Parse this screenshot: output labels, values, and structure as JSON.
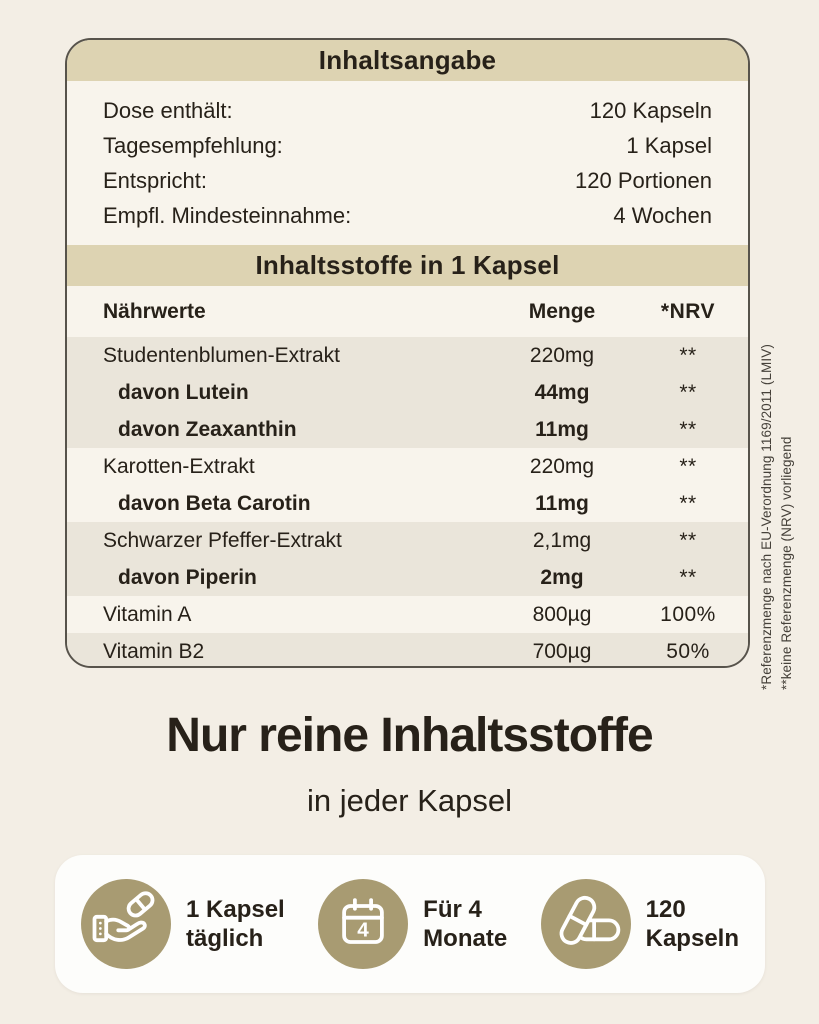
{
  "colors": {
    "page_bg": "#f3eee5",
    "card_bg": "#f8f4ec",
    "band_bg": "#ddd3b2",
    "row_shade": "#eae5da",
    "text": "#272119",
    "muted_text": "#46413a",
    "icon_circle": "#a89b72",
    "benefits_bg": "#fdfdfb",
    "card_border": "#57534b"
  },
  "panel": {
    "title": "Inhaltsangabe",
    "info_rows": [
      {
        "label": "Dose enthält:",
        "value": "120 Kapseln"
      },
      {
        "label": "Tagesempfehlung:",
        "value": "1 Kapsel"
      },
      {
        "label": "Entspricht:",
        "value": "120 Portionen"
      },
      {
        "label": "Empfl. Mindesteinnahme:",
        "value": "4 Wochen"
      }
    ],
    "subtitle": "Inhaltsstoffe in 1 Kapsel",
    "table": {
      "col_name": "Nährwerte",
      "col_amount": "Menge",
      "col_nrv": "*NRV",
      "rows": [
        {
          "name": "Studentenblumen-Extrakt",
          "amount": "220mg",
          "nrv": "**",
          "bold": false,
          "indent": false,
          "shaded": true
        },
        {
          "name": "davon Lutein",
          "amount": "44mg",
          "nrv": "**",
          "bold": true,
          "indent": true,
          "shaded": true
        },
        {
          "name": "davon Zeaxanthin",
          "amount": "11mg",
          "nrv": "**",
          "bold": true,
          "indent": true,
          "shaded": true
        },
        {
          "name": "Karotten-Extrakt",
          "amount": "220mg",
          "nrv": "**",
          "bold": false,
          "indent": false,
          "shaded": false
        },
        {
          "name": "davon Beta Carotin",
          "amount": "11mg",
          "nrv": "**",
          "bold": true,
          "indent": true,
          "shaded": false
        },
        {
          "name": "Schwarzer Pfeffer-Extrakt",
          "amount": "2,1mg",
          "nrv": "**",
          "bold": false,
          "indent": false,
          "shaded": true
        },
        {
          "name": "davon Piperin",
          "amount": "2mg",
          "nrv": "**",
          "bold": true,
          "indent": true,
          "shaded": true
        },
        {
          "name": "Vitamin A",
          "amount": "800µg",
          "nrv": "100%",
          "bold": false,
          "indent": false,
          "shaded": false
        },
        {
          "name": "Vitamin B2",
          "amount": "700µg",
          "nrv": "50%",
          "bold": false,
          "indent": false,
          "shaded": true
        }
      ]
    },
    "footnotes": [
      "*Referenzmenge nach EU-Verordnung 1169/2011 (LMIV)",
      "**keine Referenzmenge (NRV) vorliegend"
    ]
  },
  "headline": {
    "title": "Nur reine Inhaltsstoffe",
    "subtitle": "in jeder Kapsel"
  },
  "benefits": [
    {
      "icon": "hand-capsule-icon",
      "line1": "1 Kapsel",
      "line2": "täglich"
    },
    {
      "icon": "calendar-icon",
      "badge": "4",
      "line1": "Für 4",
      "line2": "Monate"
    },
    {
      "icon": "capsules-icon",
      "line1": "120",
      "line2": "Kapseln"
    }
  ]
}
